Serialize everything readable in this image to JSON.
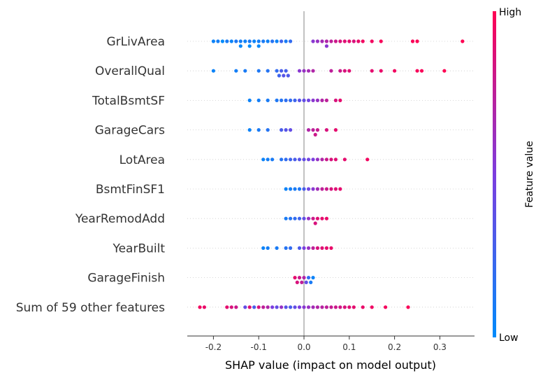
{
  "chart_data": {
    "type": "scatter",
    "subtype": "shap-beeswarm",
    "xlabel": "SHAP value (impact on model output)",
    "xlim": [
      -0.255,
      0.375
    ],
    "xticks": [
      "-0.2",
      "-0.1",
      "0.0",
      "0.1",
      "0.2",
      "0.3"
    ],
    "xtick_values": [
      -0.2,
      -0.1,
      0.0,
      0.1,
      0.2,
      0.3
    ],
    "grid": false,
    "colorbar": {
      "label": "Feature value",
      "high_label": "High",
      "low_label": "Low",
      "low_color": "#008bfb",
      "mid_color": "#7c3ddf",
      "high_color": "#ff0052"
    },
    "zero_line_color": "#999999",
    "features": [
      {
        "name": "GrLivArea",
        "points": [
          [
            -0.2,
            0.05
          ],
          [
            -0.19,
            0.08
          ],
          [
            -0.18,
            0.0
          ],
          [
            -0.17,
            0.1
          ],
          [
            -0.16,
            0.05
          ],
          [
            -0.15,
            0.12
          ],
          [
            -0.14,
            0.08
          ],
          [
            -0.14,
            0.02
          ],
          [
            -0.13,
            0.06
          ],
          [
            -0.12,
            0.1
          ],
          [
            -0.12,
            0.0
          ],
          [
            -0.11,
            0.05
          ],
          [
            -0.1,
            0.08
          ],
          [
            -0.1,
            0.02
          ],
          [
            -0.09,
            0.1
          ],
          [
            -0.08,
            0.06
          ],
          [
            -0.07,
            0.15
          ],
          [
            -0.06,
            0.05
          ],
          [
            -0.05,
            0.25
          ],
          [
            -0.04,
            0.1
          ],
          [
            -0.03,
            0.2
          ],
          [
            0.02,
            0.55
          ],
          [
            0.03,
            0.6
          ],
          [
            0.04,
            0.65
          ],
          [
            0.05,
            0.7
          ],
          [
            0.05,
            0.55
          ],
          [
            0.06,
            0.75
          ],
          [
            0.07,
            0.8
          ],
          [
            0.08,
            0.85
          ],
          [
            0.09,
            0.88
          ],
          [
            0.1,
            0.9
          ],
          [
            0.11,
            0.85
          ],
          [
            0.12,
            0.92
          ],
          [
            0.13,
            0.95
          ],
          [
            0.15,
            0.95
          ],
          [
            0.17,
            0.97
          ],
          [
            0.24,
            0.98
          ],
          [
            0.25,
            0.99
          ],
          [
            0.35,
            1.0
          ]
        ]
      },
      {
        "name": "OverallQual",
        "points": [
          [
            -0.2,
            0.05
          ],
          [
            -0.15,
            0.08
          ],
          [
            -0.13,
            0.1
          ],
          [
            -0.1,
            0.12
          ],
          [
            -0.08,
            0.15
          ],
          [
            -0.06,
            0.2
          ],
          [
            -0.055,
            0.25
          ],
          [
            -0.05,
            0.3
          ],
          [
            -0.045,
            0.35
          ],
          [
            -0.04,
            0.28
          ],
          [
            -0.035,
            0.32
          ],
          [
            -0.01,
            0.55
          ],
          [
            0.0,
            0.6
          ],
          [
            0.01,
            0.65
          ],
          [
            0.02,
            0.7
          ],
          [
            0.06,
            0.75
          ],
          [
            0.08,
            0.8
          ],
          [
            0.09,
            0.85
          ],
          [
            0.1,
            0.88
          ],
          [
            0.15,
            0.9
          ],
          [
            0.17,
            0.92
          ],
          [
            0.2,
            0.95
          ],
          [
            0.25,
            0.97
          ],
          [
            0.26,
            0.98
          ],
          [
            0.31,
            1.0
          ]
        ]
      },
      {
        "name": "TotalBsmtSF",
        "points": [
          [
            -0.12,
            0.05
          ],
          [
            -0.1,
            0.08
          ],
          [
            -0.08,
            0.1
          ],
          [
            -0.06,
            0.12
          ],
          [
            -0.05,
            0.15
          ],
          [
            -0.04,
            0.18
          ],
          [
            -0.03,
            0.2
          ],
          [
            -0.02,
            0.25
          ],
          [
            -0.01,
            0.35
          ],
          [
            0.0,
            0.4
          ],
          [
            0.01,
            0.45
          ],
          [
            0.02,
            0.55
          ],
          [
            0.03,
            0.6
          ],
          [
            0.04,
            0.7
          ],
          [
            0.05,
            0.75
          ],
          [
            0.07,
            0.85
          ],
          [
            0.08,
            0.9
          ]
        ]
      },
      {
        "name": "GarageCars",
        "points": [
          [
            -0.12,
            0.05
          ],
          [
            -0.1,
            0.1
          ],
          [
            -0.08,
            0.15
          ],
          [
            -0.05,
            0.3
          ],
          [
            -0.04,
            0.35
          ],
          [
            -0.03,
            0.4
          ],
          [
            0.01,
            0.7
          ],
          [
            0.02,
            0.75
          ],
          [
            0.025,
            0.8
          ],
          [
            0.03,
            0.78
          ],
          [
            0.05,
            0.85
          ],
          [
            0.07,
            0.9
          ]
        ]
      },
      {
        "name": "LotArea",
        "points": [
          [
            -0.09,
            0.05
          ],
          [
            -0.08,
            0.08
          ],
          [
            -0.07,
            0.1
          ],
          [
            -0.05,
            0.15
          ],
          [
            -0.04,
            0.2
          ],
          [
            -0.03,
            0.25
          ],
          [
            -0.02,
            0.3
          ],
          [
            -0.01,
            0.35
          ],
          [
            0.0,
            0.4
          ],
          [
            0.01,
            0.45
          ],
          [
            0.02,
            0.5
          ],
          [
            0.03,
            0.6
          ],
          [
            0.04,
            0.7
          ],
          [
            0.05,
            0.8
          ],
          [
            0.06,
            0.85
          ],
          [
            0.07,
            0.88
          ],
          [
            0.09,
            0.9
          ],
          [
            0.14,
            0.95
          ]
        ]
      },
      {
        "name": "BsmtFinSF1",
        "points": [
          [
            -0.04,
            0.05
          ],
          [
            -0.03,
            0.08
          ],
          [
            -0.02,
            0.1
          ],
          [
            -0.01,
            0.12
          ],
          [
            0.0,
            0.3
          ],
          [
            0.01,
            0.45
          ],
          [
            0.02,
            0.55
          ],
          [
            0.03,
            0.65
          ],
          [
            0.04,
            0.75
          ],
          [
            0.05,
            0.8
          ],
          [
            0.06,
            0.85
          ],
          [
            0.07,
            0.88
          ],
          [
            0.08,
            0.9
          ]
        ]
      },
      {
        "name": "YearRemodAdd",
        "points": [
          [
            -0.04,
            0.1
          ],
          [
            -0.03,
            0.15
          ],
          [
            -0.02,
            0.2
          ],
          [
            -0.01,
            0.25
          ],
          [
            0.0,
            0.4
          ],
          [
            0.01,
            0.6
          ],
          [
            0.02,
            0.8
          ],
          [
            0.025,
            0.85
          ],
          [
            0.03,
            0.88
          ],
          [
            0.04,
            0.9
          ],
          [
            0.05,
            0.92
          ]
        ]
      },
      {
        "name": "YearBuilt",
        "points": [
          [
            -0.09,
            0.05
          ],
          [
            -0.08,
            0.08
          ],
          [
            -0.06,
            0.1
          ],
          [
            -0.04,
            0.15
          ],
          [
            -0.03,
            0.2
          ],
          [
            -0.01,
            0.3
          ],
          [
            0.0,
            0.5
          ],
          [
            0.01,
            0.6
          ],
          [
            0.02,
            0.75
          ],
          [
            0.03,
            0.85
          ],
          [
            0.04,
            0.88
          ],
          [
            0.05,
            0.9
          ],
          [
            0.06,
            0.92
          ]
        ]
      },
      {
        "name": "GarageFinish",
        "points": [
          [
            -0.02,
            0.9
          ],
          [
            -0.015,
            0.85
          ],
          [
            -0.01,
            0.8
          ],
          [
            -0.005,
            0.75
          ],
          [
            0.0,
            0.7
          ],
          [
            0.005,
            0.4
          ],
          [
            0.01,
            0.2
          ],
          [
            0.015,
            0.1
          ],
          [
            0.02,
            0.05
          ]
        ]
      },
      {
        "name": "Sum of 59 other features",
        "points": [
          [
            -0.23,
            0.95
          ],
          [
            -0.22,
            0.92
          ],
          [
            -0.17,
            0.9
          ],
          [
            -0.16,
            0.85
          ],
          [
            -0.15,
            0.8
          ],
          [
            -0.13,
            0.4
          ],
          [
            -0.12,
            0.88
          ],
          [
            -0.11,
            0.3
          ],
          [
            -0.1,
            0.85
          ],
          [
            -0.09,
            0.75
          ],
          [
            -0.08,
            0.7
          ],
          [
            -0.07,
            0.5
          ],
          [
            -0.06,
            0.4
          ],
          [
            -0.05,
            0.6
          ],
          [
            -0.04,
            0.35
          ],
          [
            -0.03,
            0.3
          ],
          [
            -0.02,
            0.4
          ],
          [
            -0.01,
            0.5
          ],
          [
            0.0,
            0.55
          ],
          [
            0.01,
            0.6
          ],
          [
            0.02,
            0.65
          ],
          [
            0.03,
            0.7
          ],
          [
            0.04,
            0.72
          ],
          [
            0.05,
            0.75
          ],
          [
            0.06,
            0.78
          ],
          [
            0.07,
            0.8
          ],
          [
            0.08,
            0.82
          ],
          [
            0.09,
            0.85
          ],
          [
            0.1,
            0.88
          ],
          [
            0.11,
            0.9
          ],
          [
            0.13,
            0.92
          ],
          [
            0.15,
            0.94
          ],
          [
            0.18,
            0.96
          ],
          [
            0.23,
            0.98
          ]
        ]
      }
    ]
  }
}
